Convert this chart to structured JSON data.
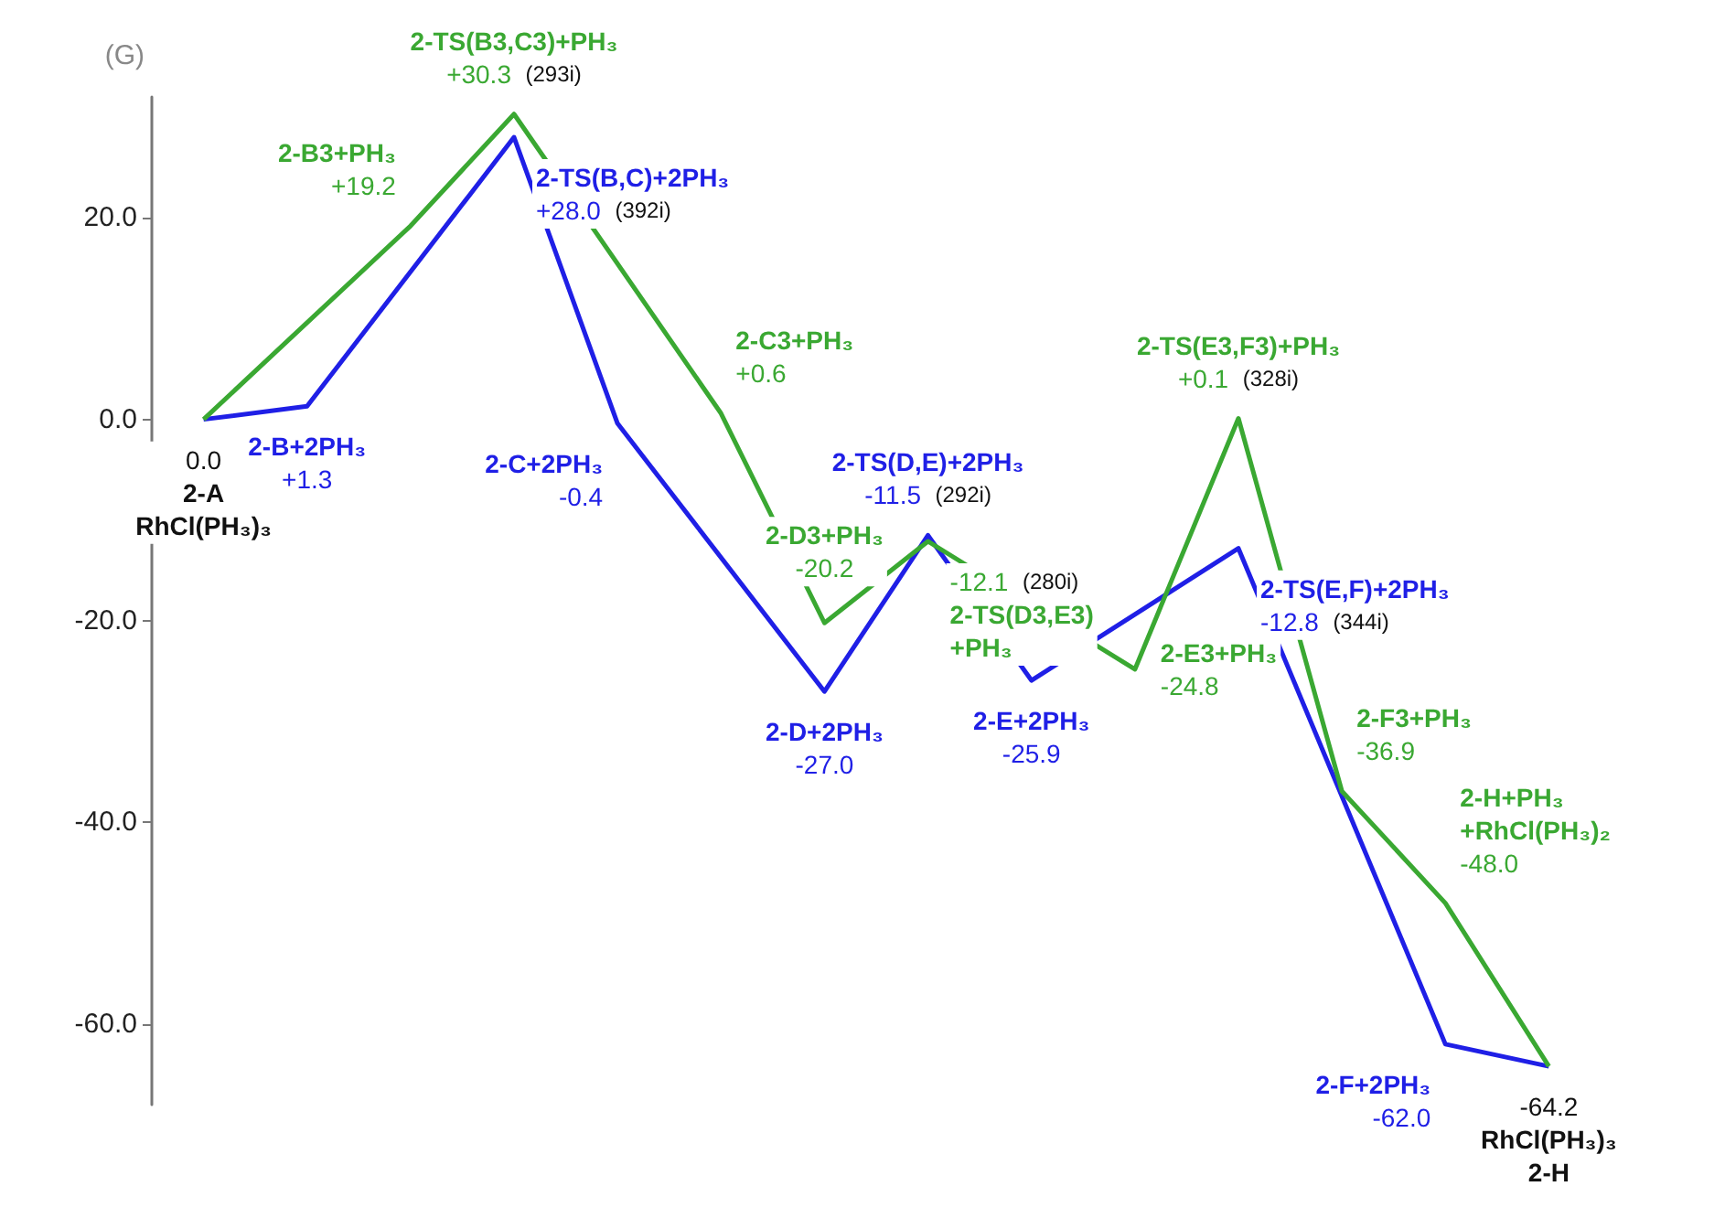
{
  "chart_data": {
    "type": "line",
    "ylabel": "(G)",
    "ylim": [
      -68,
      32
    ],
    "categories": [
      null,
      null,
      null,
      null,
      null,
      null,
      null,
      null,
      null,
      null,
      null,
      null,
      null,
      null
    ],
    "yticks": [
      {
        "value": 20,
        "label": "20.0"
      },
      {
        "value": 0,
        "label": "0.0"
      },
      {
        "value": -20,
        "label": "-20.0"
      },
      {
        "value": -40,
        "label": "-40.0"
      },
      {
        "value": -60,
        "label": "-60.0"
      }
    ],
    "tick_labels": "y",
    "grid": false,
    "series": [
      {
        "color": "#1f1fe6",
        "values": [
          0,
          1.3,
          null,
          28,
          -0.4,
          null,
          -27,
          -11.5,
          -25.9,
          null,
          -12.8,
          null,
          -62,
          -64.2
        ],
        "value_labels": [
          "0.0",
          "+1.3",
          null,
          "+28.0",
          "-0.4",
          null,
          "-27.0",
          "-11.5",
          "-25.9",
          null,
          "-12.8",
          null,
          "-62.0",
          "-64.2"
        ]
      },
      {
        "color": "#3aa832",
        "values": [
          0,
          null,
          19.2,
          30.3,
          null,
          0.6,
          -20.2,
          -12.1,
          null,
          -24.8,
          0.1,
          -36.9,
          -48,
          -64.2
        ],
        "value_labels": [
          null,
          null,
          "+19.2",
          "+30.3",
          null,
          "+0.6",
          "-20.2",
          "-12.1",
          null,
          "-24.8",
          "+0.1",
          "-36.9",
          "-48.0",
          null
        ]
      }
    ],
    "annotations": [
      "2-A\nRhCl(PH₃)₃",
      "2-B+2PH₃",
      "2-TS(B,C)+2PH₃",
      "(392i)",
      "2-C+2PH₃",
      "2-D+2PH₃",
      "2-TS(D,E)+2PH₃",
      "(292i)",
      "2-E+2PH₃",
      "2-TS(E,F)+2PH₃",
      "(344i)",
      "2-F+2PH₃",
      "RhCl(PH₃)₃\n2-H",
      "2-B3+PH₃",
      "2-TS(B3,C3)+PH₃",
      "(293i)",
      "2-C3+PH₃",
      "2-D3+PH₃",
      "2-TS(D3,E3)\n+PH₃",
      "(280i)",
      "2-E3+PH₃",
      "2-TS(E3,F3)+PH₃",
      "(328i)",
      "2-F3+PH₃",
      "2-H+PH₃\n+RhCl(PH₃)₂"
    ]
  }
}
